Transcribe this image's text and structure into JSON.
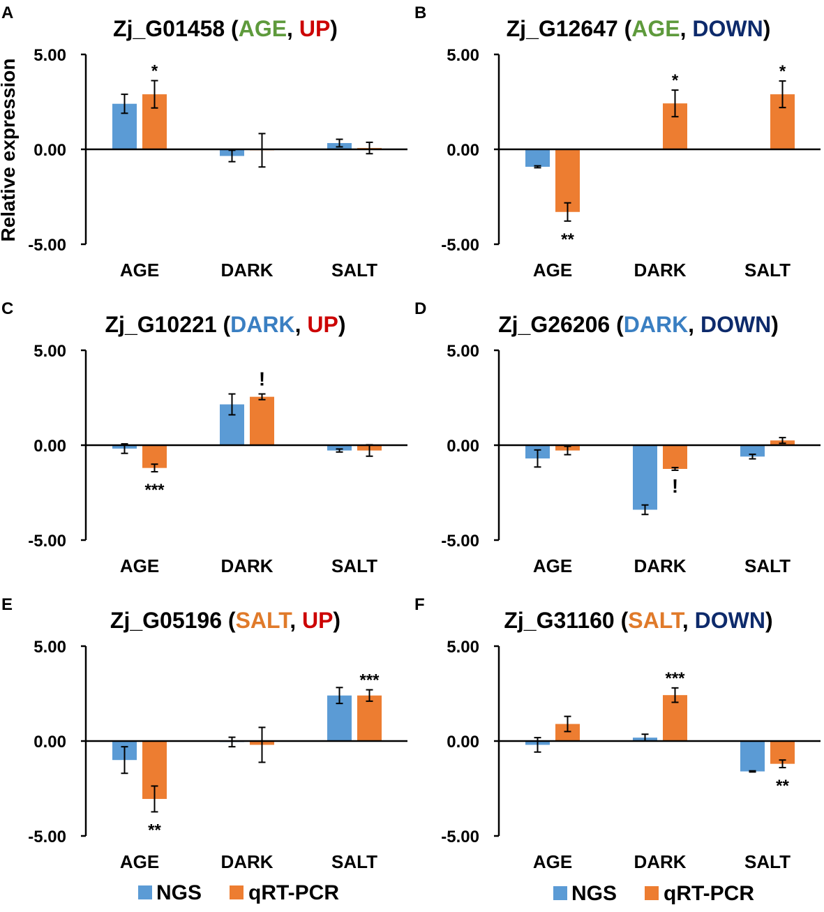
{
  "colors": {
    "ngs": "#5B9BD5",
    "qrt": "#ED7D31",
    "age": "#5E9A3C",
    "dark": "#3A7FC2",
    "salt": "#E07A2A",
    "up": "#CC0000",
    "down": "#0D2A6B",
    "black": "#000000"
  },
  "y_axis_label": "Relative expression",
  "legends": [
    {
      "ngs": "NGS",
      "qrt": "qRT-PCR"
    },
    {
      "ngs": "NGS",
      "qrt": "qRT-PCR"
    }
  ],
  "chart_data": [
    {
      "panel": "A",
      "type": "bar",
      "title": {
        "gene": "Zj_G01458",
        "condition": "AGE",
        "condition_color": "age",
        "direction": "UP",
        "direction_color": "up"
      },
      "categories": [
        "AGE",
        "DARK",
        "SALT"
      ],
      "ylim": [
        -5,
        5
      ],
      "yticks": [
        "5.00",
        "0.00",
        "-5.00"
      ],
      "series": [
        {
          "name": "NGS",
          "values": [
            2.4,
            -0.35,
            0.33
          ],
          "errors": [
            0.5,
            0.3,
            0.2
          ],
          "marks": [
            "",
            "",
            ""
          ]
        },
        {
          "name": "qRT-PCR",
          "values": [
            2.9,
            -0.05,
            0.07
          ],
          "errors": [
            0.72,
            0.88,
            0.3
          ],
          "marks": [
            "*",
            "",
            ""
          ]
        }
      ]
    },
    {
      "panel": "B",
      "type": "bar",
      "title": {
        "gene": "Zj_G12647",
        "condition": "AGE",
        "condition_color": "age",
        "direction": "DOWN",
        "direction_color": "down"
      },
      "categories": [
        "AGE",
        "DARK",
        "SALT"
      ],
      "ylim": [
        -5,
        5
      ],
      "yticks": [
        "5.00",
        "0.00",
        "-5.00"
      ],
      "series": [
        {
          "name": "NGS",
          "values": [
            -0.92,
            0,
            0
          ],
          "errors": [
            0.05,
            0,
            0
          ],
          "marks": [
            "",
            "",
            ""
          ]
        },
        {
          "name": "qRT-PCR",
          "values": [
            -3.3,
            2.42,
            2.9
          ],
          "errors": [
            0.48,
            0.7,
            0.7
          ],
          "marks": [
            "**",
            "*",
            "*"
          ]
        }
      ]
    },
    {
      "panel": "C",
      "type": "bar",
      "title": {
        "gene": "Zj_G10221",
        "condition": "DARK",
        "condition_color": "dark",
        "direction": "UP",
        "direction_color": "up"
      },
      "categories": [
        "AGE",
        "DARK",
        "SALT"
      ],
      "ylim": [
        -5,
        5
      ],
      "yticks": [
        "5.00",
        "0.00",
        "-5.00"
      ],
      "series": [
        {
          "name": "NGS",
          "values": [
            -0.18,
            2.15,
            -0.28
          ],
          "errors": [
            0.25,
            0.55,
            0.08
          ],
          "marks": [
            "",
            "",
            ""
          ]
        },
        {
          "name": "qRT-PCR",
          "values": [
            -1.2,
            2.55,
            -0.28
          ],
          "errors": [
            0.2,
            0.15,
            0.3
          ],
          "marks": [
            "***",
            "!",
            ""
          ]
        }
      ]
    },
    {
      "panel": "D",
      "type": "bar",
      "title": {
        "gene": "Zj_G26206",
        "condition": "DARK",
        "condition_color": "dark",
        "direction": "DOWN",
        "direction_color": "down"
      },
      "categories": [
        "AGE",
        "DARK",
        "SALT"
      ],
      "ylim": [
        -5,
        5
      ],
      "yticks": [
        "5.00",
        "0.00",
        "-5.00"
      ],
      "series": [
        {
          "name": "NGS",
          "values": [
            -0.7,
            -3.4,
            -0.6
          ],
          "errors": [
            0.45,
            0.25,
            0.12
          ],
          "marks": [
            "",
            "",
            ""
          ]
        },
        {
          "name": "qRT-PCR",
          "values": [
            -0.28,
            -1.25,
            0.25
          ],
          "errors": [
            0.22,
            0.07,
            0.15
          ],
          "marks": [
            "",
            "!",
            ""
          ]
        }
      ]
    },
    {
      "panel": "E",
      "type": "bar",
      "title": {
        "gene": "Zj_G05196",
        "condition": "SALT",
        "condition_color": "salt",
        "direction": "UP",
        "direction_color": "up"
      },
      "categories": [
        "AGE",
        "DARK",
        "SALT"
      ],
      "ylim": [
        -5,
        5
      ],
      "yticks": [
        "5.00",
        "0.00",
        "-5.00"
      ],
      "series": [
        {
          "name": "NGS",
          "values": [
            -1.0,
            -0.05,
            2.4
          ],
          "errors": [
            0.7,
            0.25,
            0.42
          ],
          "marks": [
            "",
            "",
            ""
          ]
        },
        {
          "name": "qRT-PCR",
          "values": [
            -3.05,
            -0.2,
            2.4
          ],
          "errors": [
            0.68,
            0.92,
            0.3
          ],
          "marks": [
            "**",
            "",
            "***"
          ]
        }
      ]
    },
    {
      "panel": "F",
      "type": "bar",
      "title": {
        "gene": "Zj_G31160",
        "condition": "SALT",
        "condition_color": "salt",
        "direction": "DOWN",
        "direction_color": "down"
      },
      "categories": [
        "AGE",
        "DARK",
        "SALT"
      ],
      "ylim": [
        -5,
        5
      ],
      "yticks": [
        "5.00",
        "0.00",
        "-5.00"
      ],
      "series": [
        {
          "name": "NGS",
          "values": [
            -0.2,
            0.18,
            -1.6
          ],
          "errors": [
            0.38,
            0.18,
            0.03
          ],
          "marks": [
            "",
            "",
            ""
          ]
        },
        {
          "name": "qRT-PCR",
          "values": [
            0.9,
            2.42,
            -1.2
          ],
          "errors": [
            0.4,
            0.38,
            0.2
          ],
          "marks": [
            "",
            "***",
            "**"
          ]
        }
      ]
    }
  ]
}
